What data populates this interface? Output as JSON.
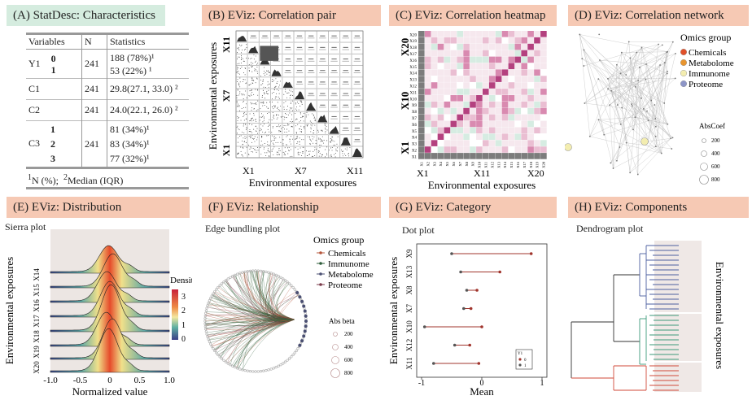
{
  "panels": {
    "a": {
      "label": "(A) StatDesc: Characteristics"
    },
    "b": {
      "label": "(B) EViz: Correlation pair"
    },
    "c": {
      "label": "(C) EViz: Correlation heatmap"
    },
    "d": {
      "label": "(D) EViz: Correlation network"
    },
    "e": {
      "label": "(E) EViz: Distribution"
    },
    "f": {
      "label": "(F) EViz: Relationship"
    },
    "g": {
      "label": "(G) EViz: Category"
    },
    "h": {
      "label": "(H) EViz: Components"
    }
  },
  "table": {
    "headers": [
      "Variables",
      "N",
      "Statistics"
    ],
    "y1": {
      "name": "Y1",
      "n": "241",
      "levels": [
        "0",
        "1"
      ],
      "stats": [
        "188 (78%)¹",
        "53 (22%)  ¹"
      ]
    },
    "c1": {
      "name": "C1",
      "n": "241",
      "stat": "29.8(27.1, 33.0) ²"
    },
    "c2": {
      "name": "C2",
      "n": "241",
      "stat": "24.0(22.1, 26.0) ²"
    },
    "c3": {
      "name": "C3",
      "n": "241",
      "levels": [
        "1",
        "2",
        "3"
      ],
      "stats": [
        "81 (34%)¹",
        "83 (34%)¹",
        "77 (32%)¹"
      ]
    },
    "footnote1_sup": "1",
    "footnote1": "N (%);",
    "footnote2_sup": "2",
    "footnote2": "Median (IQR)"
  },
  "pair": {
    "ylabel": "Environmental exposures",
    "xlabel": "Environmental exposures",
    "xticks": [
      "X1",
      "X7",
      "X11"
    ],
    "yticks": [
      "X11",
      "X7",
      "X1"
    ]
  },
  "heatmap": {
    "xlabel": "Environmental exposures",
    "xticks": [
      "X1",
      "X11",
      "X20"
    ],
    "yticks_big": [
      "X20",
      "X10",
      "X1"
    ],
    "small_rows": [
      "X20",
      "X19",
      "X18",
      "X17",
      "X16",
      "X15",
      "X14",
      "X13",
      "X12",
      "X11",
      "X10",
      "X9",
      "X8",
      "X7",
      "X6",
      "X5",
      "X4",
      "X3",
      "X2",
      "X1"
    ]
  },
  "network": {
    "legend_title": "Omics group",
    "groups": [
      {
        "name": "Chemicals",
        "color": "#e0502a"
      },
      {
        "name": "Metabolome",
        "color": "#e8952f"
      },
      {
        "name": "Immunome",
        "color": "#f3edb0"
      },
      {
        "name": "Proteome",
        "color": "#8e96c8"
      }
    ],
    "size_title": "AbsCoef",
    "sizes": [
      "200",
      "400",
      "600",
      "800"
    ]
  },
  "distribution": {
    "subtitle": "Sierra plot",
    "ylabel": "Environmental exposures",
    "xlabel": "Normalized value",
    "xticks": [
      "-1.0",
      "-0.5",
      "0",
      "0.5",
      "1.0"
    ],
    "rows": [
      "X14",
      "X15",
      "X16",
      "X17",
      "X18",
      "X19",
      "X20"
    ],
    "legend_title": "Density",
    "legend_ticks": [
      "3",
      "2",
      "1",
      "0"
    ]
  },
  "relationship": {
    "subtitle": "Edge bundling plot",
    "legend_title": "Omics group",
    "groups": [
      {
        "name": "Chemicals",
        "color": "#b5543a"
      },
      {
        "name": "Immunome",
        "color": "#2e5d3a"
      },
      {
        "name": "Metabolome",
        "color": "#4a4f72"
      },
      {
        "name": "Proteome",
        "color": "#7a3a4a"
      }
    ],
    "size_title": "Abs beta",
    "sizes": [
      "200",
      "400",
      "600",
      "800"
    ]
  },
  "category": {
    "subtitle": "Dot plot",
    "ylabel": "Environmental exposures",
    "xlabel": "Mean",
    "xticks": [
      "-1",
      "0",
      "1"
    ],
    "legend_title": "Y1",
    "legend_items": [
      "0",
      "1"
    ],
    "rows": [
      {
        "name": "X9",
        "v0": -0.5,
        "v1": 0.82
      },
      {
        "name": "X13",
        "v0": -0.35,
        "v1": 0.3
      },
      {
        "name": "X8",
        "v0": -0.25,
        "v1": -0.08
      },
      {
        "name": "X7",
        "v0": -0.3,
        "v1": -0.18
      },
      {
        "name": "X10",
        "v0": -0.95,
        "v1": 0.0
      },
      {
        "name": "X12",
        "v0": -0.45,
        "v1": -0.2
      },
      {
        "name": "X11",
        "v0": -0.8,
        "v1": -0.05
      }
    ]
  },
  "components": {
    "subtitle": "Dendrogram plot",
    "ylabel": "Environmental exposures"
  }
}
